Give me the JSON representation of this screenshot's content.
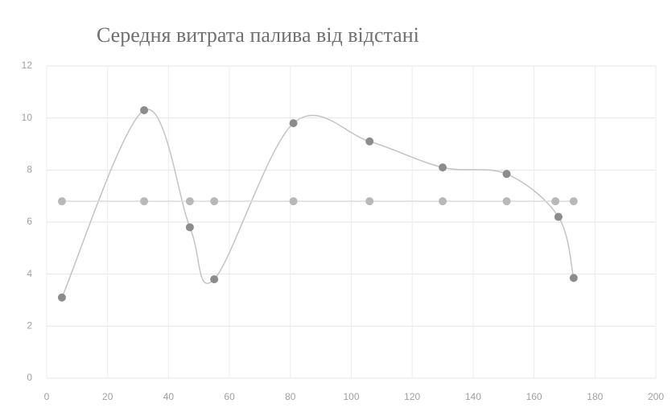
{
  "chart_data": {
    "type": "scatter_smooth",
    "title": "Середня витрата палива від відстані",
    "series": [
      {
        "color": "#8c8c8c",
        "line_color": "#c4c4c4",
        "x": [
          5,
          32,
          47,
          55,
          81,
          106,
          130,
          151,
          168,
          173
        ],
        "values": [
          3.1,
          10.3,
          5.8,
          3.8,
          9.8,
          9.1,
          8.1,
          7.85,
          6.2,
          3.85
        ]
      },
      {
        "color": "#b8b8b8",
        "line_color": "#dcdcdc",
        "x": [
          5,
          32,
          47,
          55,
          81,
          106,
          130,
          151,
          167,
          173
        ],
        "values": [
          6.8,
          6.8,
          6.8,
          6.8,
          6.8,
          6.8,
          6.8,
          6.8,
          6.8,
          6.8
        ]
      }
    ],
    "xlim": [
      0,
      200
    ],
    "xticks": [
      0,
      20,
      40,
      60,
      80,
      100,
      120,
      140,
      160,
      180,
      200
    ],
    "ylim": [
      0,
      12
    ],
    "yticks": [
      0,
      2,
      4,
      6,
      8,
      10,
      12
    ],
    "grid": true
  }
}
